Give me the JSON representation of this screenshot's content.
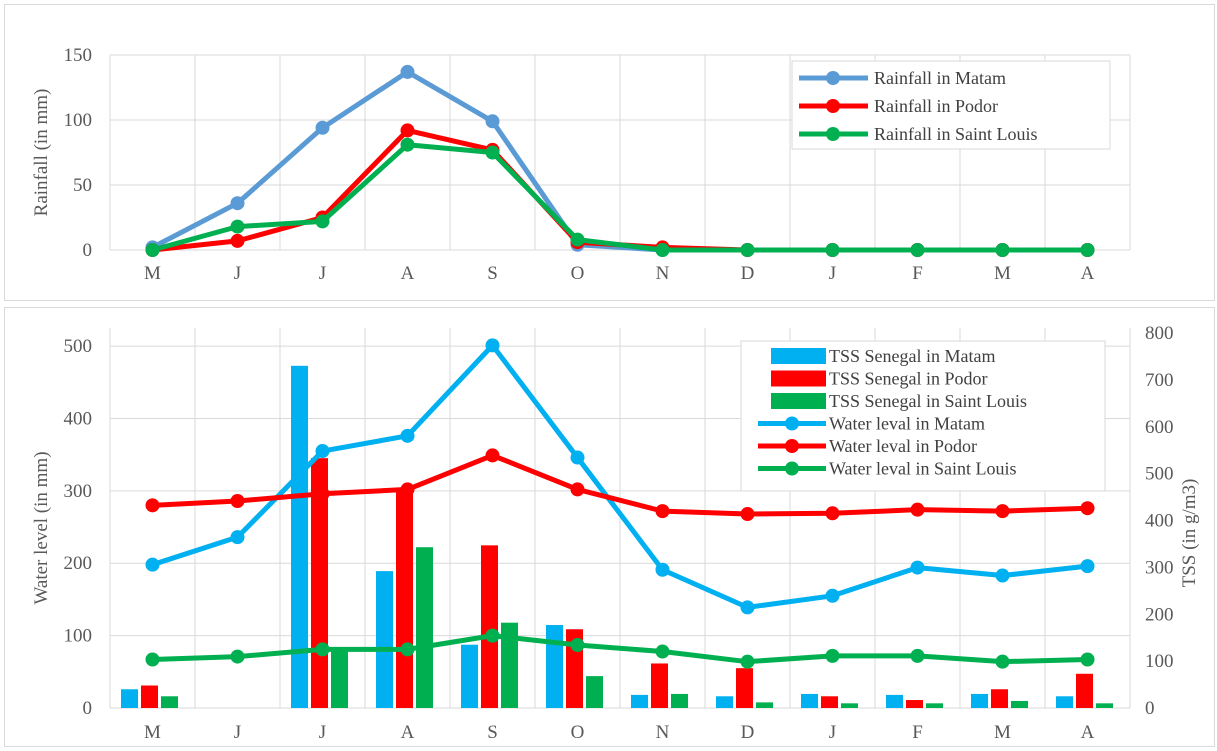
{
  "colors": {
    "matam_rain": "#5B9BD5",
    "podor": "#FF0000",
    "saint_louis": "#00B050",
    "matam": "#00B0F0",
    "grid": "#D9D9D9",
    "text": "#595959"
  },
  "chart_data": [
    {
      "type": "line",
      "title": "",
      "categories": [
        "M",
        "J",
        "J",
        "A",
        "S",
        "O",
        "N",
        "D",
        "J",
        "F",
        "M",
        "A"
      ],
      "ylabel": "Rainfall  (in mm)",
      "ylim": [
        0,
        150
      ],
      "yticks": [
        0,
        50,
        100,
        150
      ],
      "grid": true,
      "legend_position": "top-right",
      "series": [
        {
          "name": "Rainfall in Matam",
          "color": "#5B9BD5",
          "values": [
            2,
            36,
            94,
            137,
            99,
            4,
            0,
            0,
            0,
            0,
            0,
            0
          ]
        },
        {
          "name": "Rainfall in Podor",
          "color": "#FF0000",
          "values": [
            0,
            7,
            25,
            92,
            77,
            6,
            2,
            0,
            0,
            0,
            0,
            0
          ]
        },
        {
          "name": "Rainfall in Saint Louis",
          "color": "#00B050",
          "values": [
            0,
            18,
            22,
            81,
            75,
            8,
            0,
            0,
            0,
            0,
            0,
            0
          ]
        }
      ]
    },
    {
      "type": "bar+line",
      "title": "",
      "categories": [
        "M",
        "J",
        "J",
        "A",
        "S",
        "O",
        "N",
        "D",
        "J",
        "F",
        "M",
        "A"
      ],
      "ylabel": "Water level  (in mm)",
      "ylim": [
        0,
        500
      ],
      "yticks": [
        0,
        100,
        200,
        300,
        400,
        500
      ],
      "y2label": "TSS (in g/m3)",
      "y2lim": [
        0,
        800
      ],
      "y2ticks": [
        0,
        100,
        200,
        300,
        400,
        500,
        600,
        700,
        800
      ],
      "grid": true,
      "legend_position": "top-right",
      "bar_series": [
        {
          "name": "TSS Senegal in Matam",
          "color": "#00B0F0",
          "axis": "right",
          "values": [
            40,
            null,
            730,
            292,
            135,
            177,
            28,
            25,
            30,
            28,
            30,
            25
          ]
        },
        {
          "name": "TSS Senegal in Podor",
          "color": "#FF0000",
          "axis": "right",
          "values": [
            48,
            null,
            533,
            467,
            347,
            168,
            95,
            85,
            25,
            17,
            40,
            73
          ]
        },
        {
          "name": "TSS Senegal in Saint Louis",
          "color": "#00B050",
          "axis": "right",
          "values": [
            25,
            null,
            130,
            343,
            182,
            68,
            30,
            12,
            10,
            10,
            15,
            10
          ]
        }
      ],
      "line_series": [
        {
          "name": "Water leval in Matam",
          "color": "#00B0F0",
          "axis": "left",
          "values": [
            198,
            236,
            355,
            376,
            501,
            346,
            191,
            139,
            155,
            194,
            183,
            196
          ]
        },
        {
          "name": "Water leval in Podor",
          "color": "#FF0000",
          "axis": "left",
          "values": [
            280,
            286,
            296,
            302,
            349,
            302,
            272,
            268,
            269,
            274,
            272,
            276
          ]
        },
        {
          "name": "Water leval in Saint Louis",
          "color": "#00B050",
          "axis": "left",
          "values": [
            67,
            71,
            81,
            81,
            100,
            87,
            78,
            64,
            72,
            72,
            64,
            67
          ]
        }
      ]
    }
  ]
}
